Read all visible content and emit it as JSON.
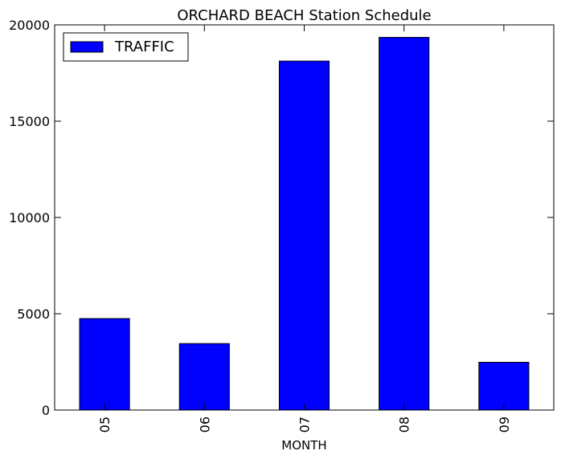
{
  "chart_data": {
    "type": "bar",
    "title": "ORCHARD BEACH Station Schedule",
    "xlabel": "MONTH",
    "ylabel": "",
    "categories": [
      "05",
      "06",
      "07",
      "08",
      "09"
    ],
    "series": [
      {
        "name": "TRAFFIC",
        "values": [
          4750,
          3450,
          18120,
          19350,
          2480
        ],
        "color": "#0000ff"
      }
    ],
    "ylim": [
      0,
      20000
    ],
    "yticks": [
      "0",
      "5000",
      "10000",
      "15000",
      "20000"
    ],
    "grid": false,
    "legend": {
      "position": "top-left",
      "entries": [
        "TRAFFIC"
      ]
    },
    "x_tick_rotation": "vertical"
  }
}
